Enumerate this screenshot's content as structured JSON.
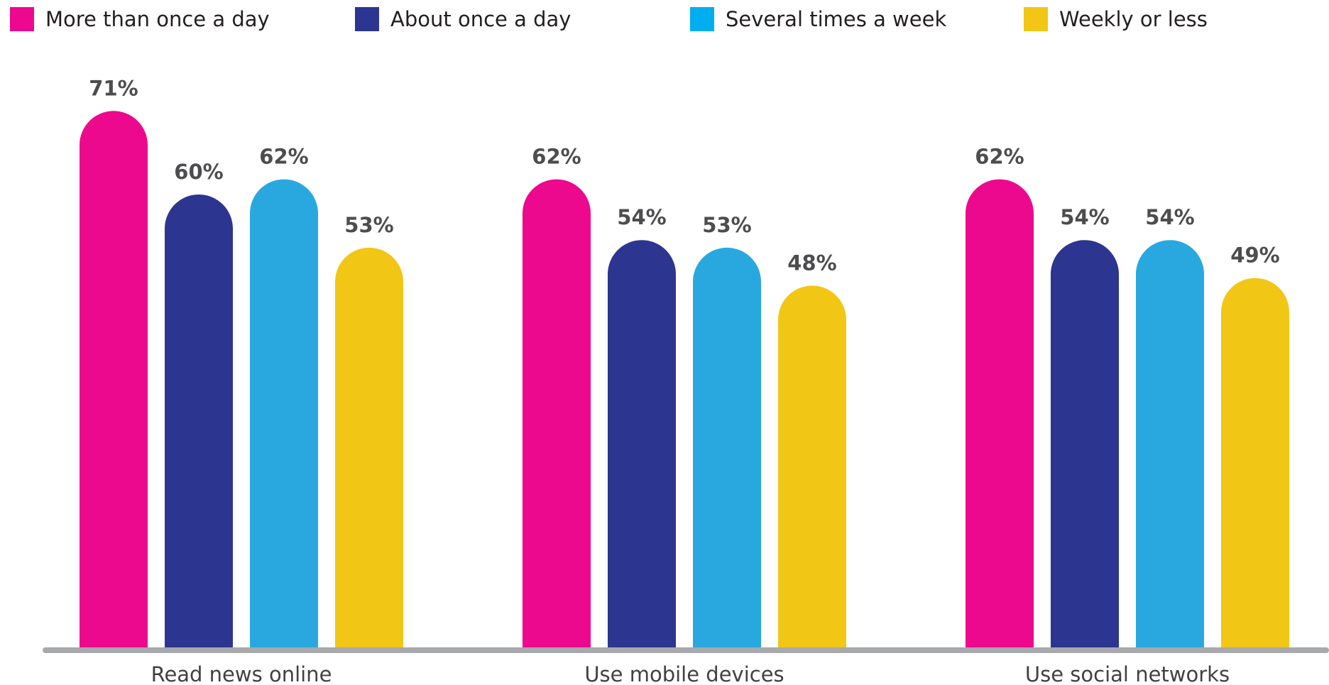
{
  "chart_data": {
    "type": "bar",
    "title": "",
    "xlabel": "",
    "ylabel": "",
    "ylim": [
      0,
      80
    ],
    "grid": false,
    "legend_position": "top",
    "categories": [
      "Read news online",
      "Use mobile devices",
      "Use social networks"
    ],
    "series": [
      {
        "name": "More than once a day",
        "color": "#EC098D",
        "values": [
          71,
          62,
          62
        ],
        "labels": [
          "71%",
          "62%",
          "62%"
        ]
      },
      {
        "name": "About once a day",
        "color": "#2C358F",
        "values": [
          60,
          54,
          54
        ],
        "labels": [
          "60%",
          "54%",
          "54%"
        ]
      },
      {
        "name": "Several times a week",
        "color": "#29A8E0",
        "values": [
          62,
          53,
          54
        ],
        "labels": [
          "62%",
          "53%",
          "54%"
        ]
      },
      {
        "name": "Weekly or less",
        "color": "#F2C615",
        "values": [
          53,
          48,
          49
        ],
        "labels": [
          "53%",
          "48%",
          "49%"
        ]
      }
    ],
    "legend_swatch_colors": [
      "#EC098D",
      "#2C358F",
      "#00AEEF",
      "#F2C615"
    ],
    "axis_color": "#A7A9AC",
    "label_color": "#4D4D4F",
    "category_label_color": "#414042"
  }
}
